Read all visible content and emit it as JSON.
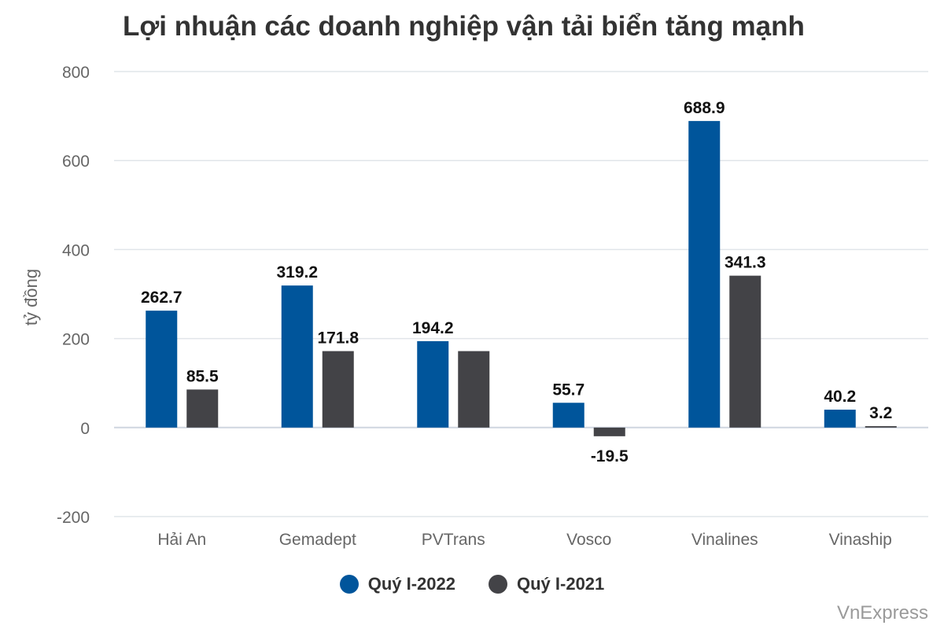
{
  "source": "VnExpress",
  "chart_data": {
    "type": "bar",
    "title": "Lợi nhuận các doanh nghiệp vận tải biển tăng mạnh",
    "ylabel": "tỷ đồng",
    "xlabel": "",
    "ylim": [
      -200,
      800
    ],
    "yticks": [
      "800",
      "600",
      "400",
      "200",
      "0",
      "-200"
    ],
    "grid": true,
    "legend_position": "bottom",
    "categories": [
      "Hải An",
      "Gemadept",
      "PVTrans",
      "Vosco",
      "Vinalines",
      "Vinaship"
    ],
    "series": [
      {
        "name": "Quý I-2022",
        "color": "#00559b",
        "values": [
          262.7,
          319.2,
          194.2,
          55.7,
          688.9,
          40.2
        ],
        "labels": [
          "262.7",
          "319.2",
          "194.2",
          "55.7",
          "688.9",
          "40.2"
        ]
      },
      {
        "name": "Quý I-2021",
        "color": "#434347",
        "values": [
          85.5,
          171.8,
          171.8,
          -19.5,
          341.3,
          3.2
        ],
        "labels": [
          "85.5",
          "171.8",
          "",
          "-19.5",
          "341.3",
          "3.2"
        ]
      }
    ]
  }
}
